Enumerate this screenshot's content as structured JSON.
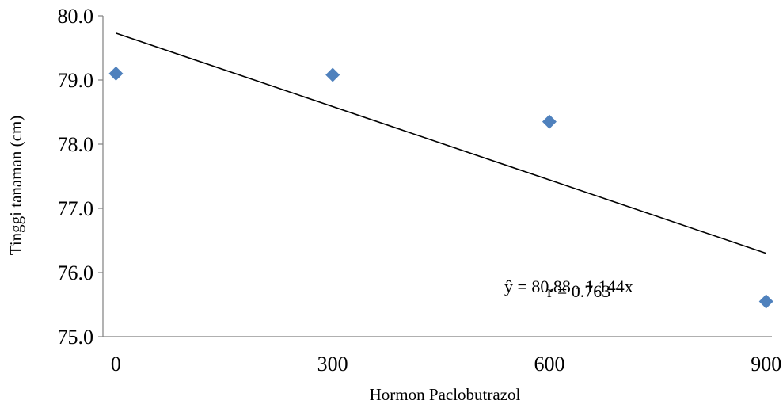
{
  "chart_data": {
    "type": "scatter",
    "title": "",
    "xlabel": "Hormon Paclobutrazol",
    "ylabel": "Tinggi tanaman (cm)",
    "x_ticks": [
      "0",
      "300",
      "600",
      "900"
    ],
    "y_ticks": [
      "75.0",
      "76.0",
      "77.0",
      "78.0",
      "79.0",
      "80.0"
    ],
    "ylim": [
      75.0,
      80.0
    ],
    "grid": false,
    "legend": "none",
    "points": [
      {
        "x": 0,
        "y": 79.1
      },
      {
        "x": 300,
        "y": 79.08
      },
      {
        "x": 600,
        "y": 78.35
      },
      {
        "x": 900,
        "y": 75.55
      }
    ],
    "trendline": {
      "type": "linear",
      "start": {
        "x": 0,
        "y": 79.73
      },
      "end": {
        "x": 900,
        "y": 76.3
      }
    },
    "annotations": {
      "equation": "ŷ =  80.88 - 1.144x",
      "r": "r = 0.763"
    },
    "colors": {
      "marker": "#4F81BD",
      "trendline": "#000000",
      "axis": "#808080"
    }
  }
}
